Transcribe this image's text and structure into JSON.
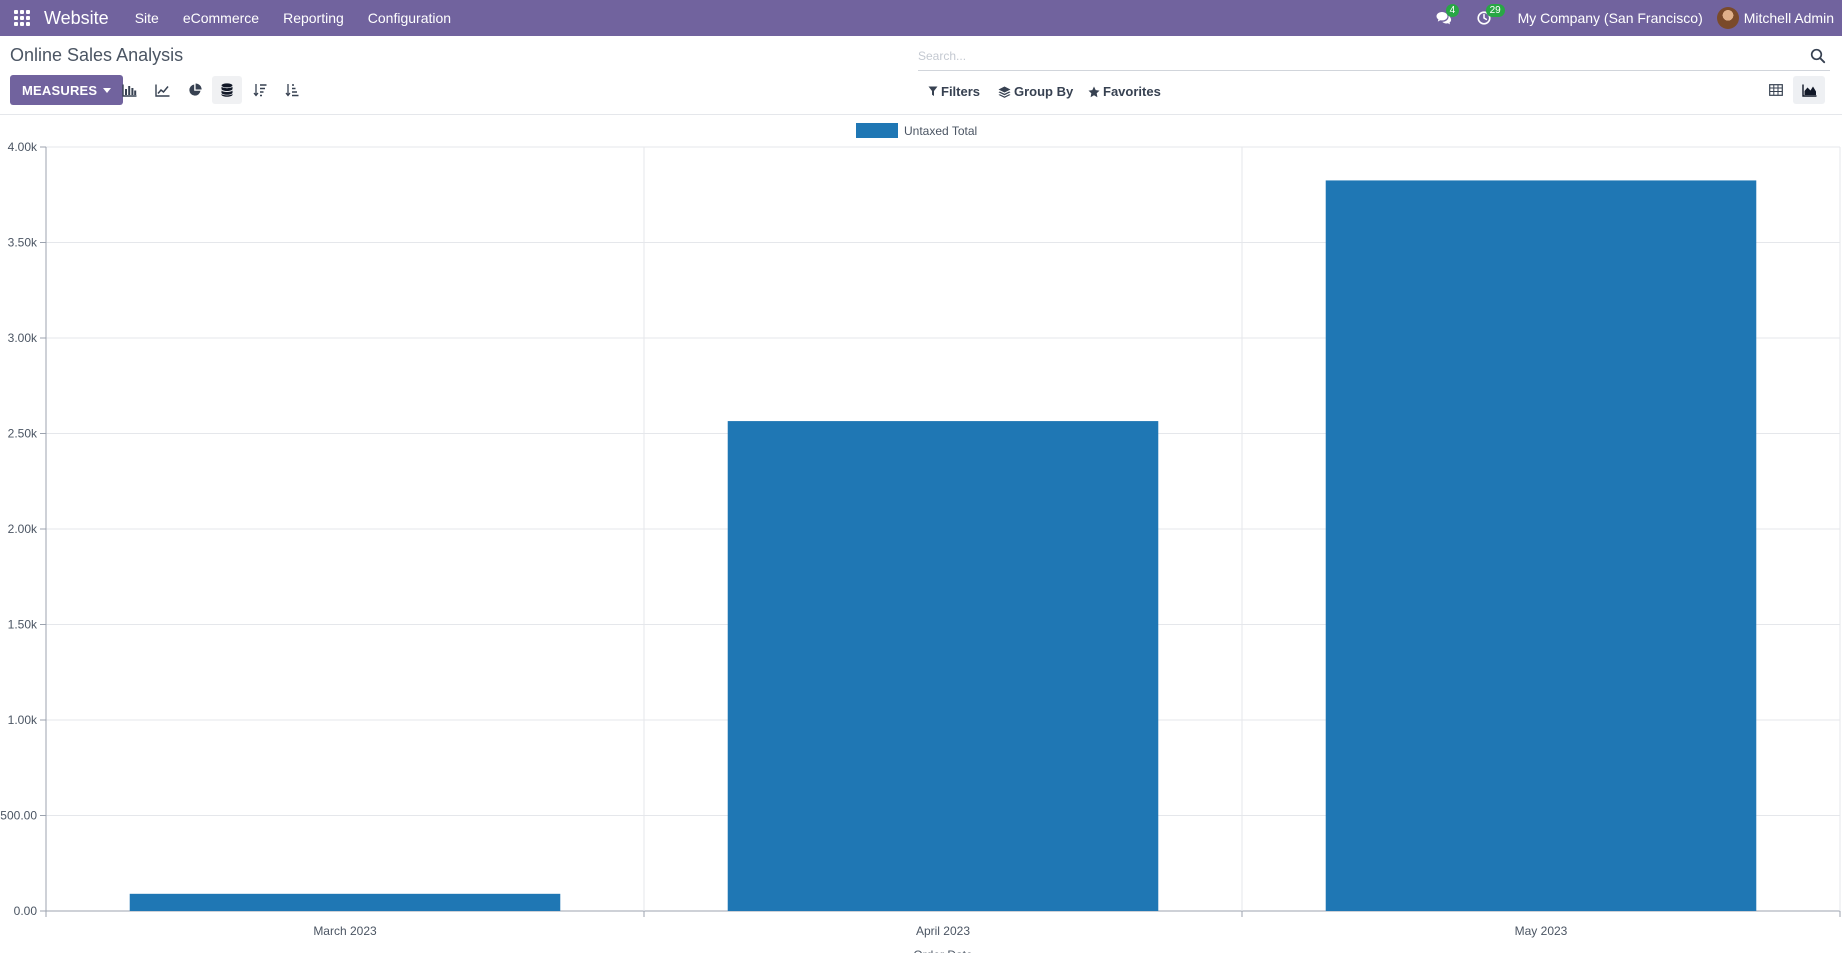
{
  "navbar": {
    "app_icon": "apps-grid-icon",
    "brand": "Website",
    "menu": [
      "Site",
      "eCommerce",
      "Reporting",
      "Configuration"
    ],
    "messages_badge": "4",
    "activities_badge": "29",
    "company": "My Company (San Francisco)",
    "user": "Mitchell Admin"
  },
  "control_panel": {
    "title": "Online Sales Analysis",
    "search_placeholder": "Search...",
    "measures_label": "MEASURES",
    "filters_label": "Filters",
    "group_by_label": "Group By",
    "favorites_label": "Favorites"
  },
  "chart_data": {
    "type": "bar",
    "categories": [
      "March 2023",
      "April 2023",
      "May 2023"
    ],
    "series": [
      {
        "name": "Untaxed Total",
        "values": [
          90,
          2565,
          3825
        ],
        "color": "#1f77b4"
      }
    ],
    "xlabel": "Order Date",
    "ylabel": "",
    "ylim": [
      0,
      4000
    ],
    "y_ticks": [
      "0.00",
      "500.00",
      "1.00k",
      "1.50k",
      "2.00k",
      "2.50k",
      "3.00k",
      "3.50k",
      "4.00k"
    ],
    "legend_position": "top-center",
    "grid": true
  }
}
